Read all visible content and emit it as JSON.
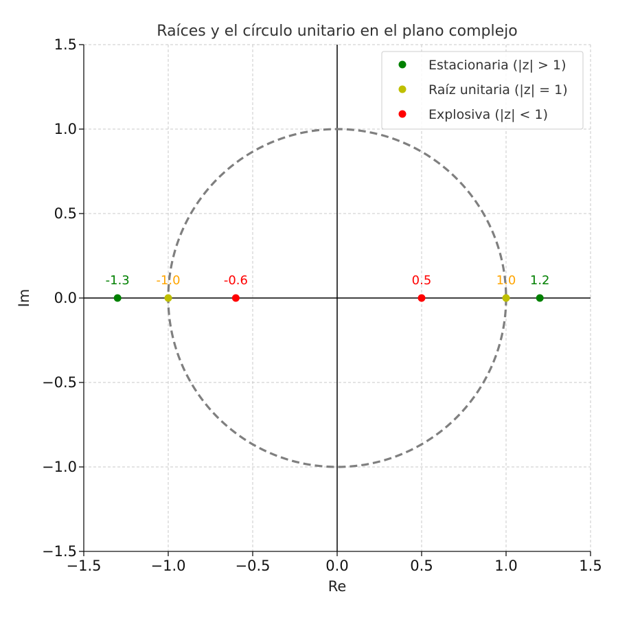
{
  "chart_data": {
    "type": "scatter",
    "title": "Raíces y el círculo unitario en el plano complejo",
    "xlabel": "Re",
    "ylabel": "Im",
    "xlim": [
      -1.5,
      1.5
    ],
    "ylim": [
      -1.5,
      1.5
    ],
    "xticks": [
      -1.5,
      -1.0,
      -0.5,
      0.0,
      0.5,
      1.0,
      1.5
    ],
    "yticks": [
      -1.5,
      -1.0,
      -0.5,
      0.0,
      0.5,
      1.0,
      1.5
    ],
    "xtick_labels": [
      "−1.5",
      "−1.0",
      "−0.5",
      "0.0",
      "0.5",
      "1.0",
      "1.5"
    ],
    "ytick_labels": [
      "−1.5",
      "−1.0",
      "−0.5",
      "0.0",
      "0.5",
      "1.0",
      "1.5"
    ],
    "grid": true,
    "unit_circle": {
      "radius": 1,
      "color": "#7f7f7f",
      "style": "dashed"
    },
    "legend_position": "top-right",
    "series": [
      {
        "name": "Estacionaria (|z| > 1)",
        "color": "#008000",
        "label_color": "#008000",
        "points": [
          {
            "x": -1.3,
            "y": 0.0,
            "label": "-1.3"
          },
          {
            "x": 1.2,
            "y": 0.0,
            "label": "1.2"
          }
        ]
      },
      {
        "name": "Raíz unitaria (|z| = 1)",
        "color": "#bfbf00",
        "label_color": "#ffa500",
        "points": [
          {
            "x": -1.0,
            "y": 0.0,
            "label": "-1.0"
          },
          {
            "x": 1.0,
            "y": 0.0,
            "label": "1.0"
          }
        ]
      },
      {
        "name": "Explosiva (|z| < 1)",
        "color": "#ff0000",
        "label_color": "#ff0000",
        "points": [
          {
            "x": -0.6,
            "y": 0.0,
            "label": "-0.6"
          },
          {
            "x": 0.5,
            "y": 0.0,
            "label": "0.5"
          }
        ]
      }
    ]
  }
}
